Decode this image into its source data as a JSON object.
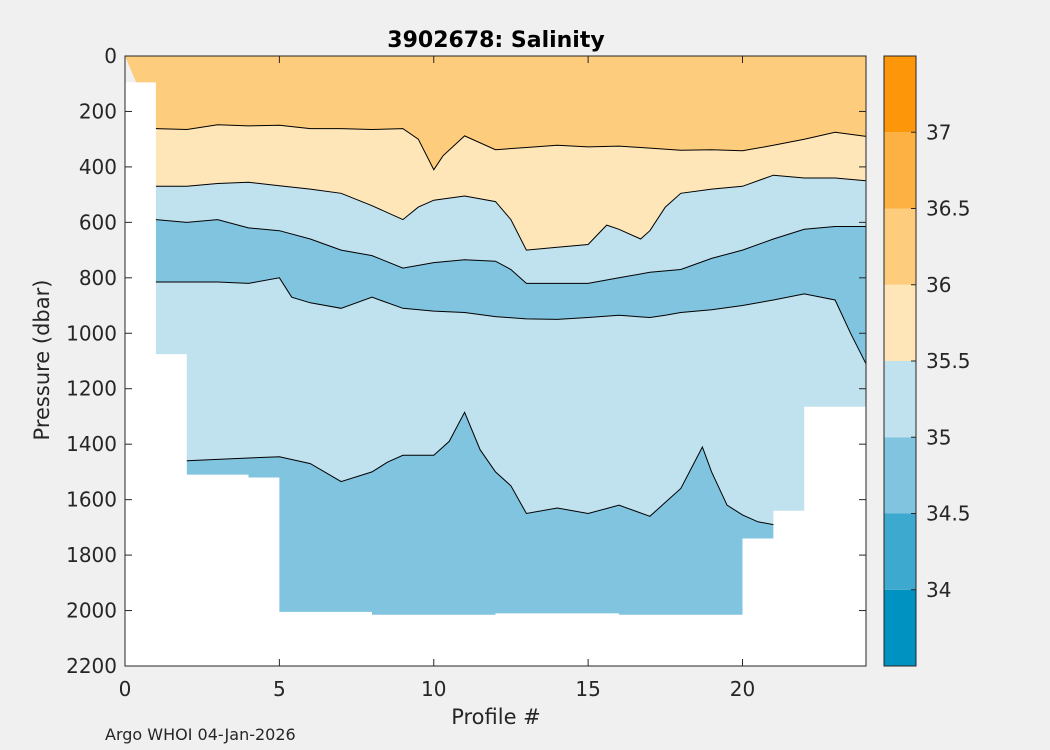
{
  "chart_data": {
    "type": "contour",
    "title": "3902678:  Salinity",
    "xlabel": "Profile #",
    "ylabel": "Pressure (dbar)",
    "xlim": [
      0,
      24
    ],
    "ylim": [
      2200,
      0
    ],
    "xticks": [
      0,
      5,
      10,
      15,
      20
    ],
    "yticks": [
      0,
      200,
      400,
      600,
      800,
      1000,
      1200,
      1400,
      1600,
      1800,
      2000,
      2200
    ],
    "colorbar": {
      "range": [
        33.5,
        37.5
      ],
      "ticks": [
        34,
        34.5,
        35,
        35.5,
        36,
        36.5,
        37
      ],
      "levels": [
        {
          "from": 33.5,
          "to": 34.0,
          "color": "#0092c0"
        },
        {
          "from": 34.0,
          "to": 34.5,
          "color": "#3ea9cf"
        },
        {
          "from": 34.5,
          "to": 35.0,
          "color": "#80c4df"
        },
        {
          "from": 35.0,
          "to": 35.5,
          "color": "#c0e1ee"
        },
        {
          "from": 35.5,
          "to": 36.0,
          "color": "#fee6b9"
        },
        {
          "from": 36.0,
          "to": 36.5,
          "color": "#fdcc7c"
        },
        {
          "from": 36.5,
          "to": 37.0,
          "color": "#fdb143"
        },
        {
          "from": 37.0,
          "to": 37.5,
          "color": "#fd9608"
        }
      ]
    },
    "profile_max_depth": [
      {
        "profile": 0,
        "max_pressure": 95
      },
      {
        "profile": 1,
        "max_pressure": 1075
      },
      {
        "profile": 2,
        "max_pressure": 1510
      },
      {
        "profile": 4,
        "max_pressure": 1520
      },
      {
        "profile": 5,
        "max_pressure": 2005
      },
      {
        "profile": 8,
        "max_pressure": 2015
      },
      {
        "profile": 12,
        "max_pressure": 2010
      },
      {
        "profile": 16,
        "max_pressure": 2015
      },
      {
        "profile": 20,
        "max_pressure": 1740
      },
      {
        "profile": 21,
        "max_pressure": 1640
      },
      {
        "profile": 22,
        "max_pressure": 1265
      },
      {
        "profile": 24,
        "max_pressure": 1265
      }
    ],
    "contours": [
      {
        "level": 36.0,
        "points": [
          [
            1,
            262
          ],
          [
            2,
            265
          ],
          [
            3,
            248
          ],
          [
            4,
            252
          ],
          [
            5,
            250
          ],
          [
            6,
            262
          ],
          [
            7,
            262
          ],
          [
            8,
            265
          ],
          [
            9,
            262
          ],
          [
            9.5,
            300
          ],
          [
            10,
            410
          ],
          [
            10.3,
            360
          ],
          [
            11,
            288
          ],
          [
            12,
            338
          ],
          [
            13,
            330
          ],
          [
            14,
            322
          ],
          [
            15,
            328
          ],
          [
            16,
            325
          ],
          [
            17,
            332
          ],
          [
            18,
            340
          ],
          [
            19,
            338
          ],
          [
            20,
            342
          ],
          [
            21,
            322
          ],
          [
            22,
            300
          ],
          [
            23,
            275
          ],
          [
            24,
            290
          ]
        ]
      },
      {
        "level": 35.5,
        "points": [
          [
            1,
            470
          ],
          [
            2,
            470
          ],
          [
            3,
            460
          ],
          [
            4,
            455
          ],
          [
            5,
            468
          ],
          [
            6,
            480
          ],
          [
            7,
            495
          ],
          [
            8,
            540
          ],
          [
            9,
            590
          ],
          [
            9.5,
            545
          ],
          [
            10,
            520
          ],
          [
            11,
            505
          ],
          [
            12,
            525
          ],
          [
            12.5,
            590
          ],
          [
            13,
            700
          ],
          [
            14,
            690
          ],
          [
            15,
            680
          ],
          [
            15.6,
            610
          ],
          [
            16,
            625
          ],
          [
            16.7,
            660
          ],
          [
            17,
            630
          ],
          [
            17.5,
            545
          ],
          [
            18,
            495
          ],
          [
            19,
            480
          ],
          [
            20,
            470
          ],
          [
            21,
            430
          ],
          [
            22,
            440
          ],
          [
            23,
            440
          ],
          [
            24,
            450
          ]
        ]
      },
      {
        "level": 35.0,
        "points": [
          [
            1,
            590
          ],
          [
            2,
            600
          ],
          [
            3,
            590
          ],
          [
            4,
            620
          ],
          [
            5,
            630
          ],
          [
            6,
            660
          ],
          [
            7,
            700
          ],
          [
            8,
            720
          ],
          [
            9,
            765
          ],
          [
            10,
            745
          ],
          [
            11,
            735
          ],
          [
            12,
            740
          ],
          [
            12.5,
            770
          ],
          [
            13,
            820
          ],
          [
            14,
            820
          ],
          [
            15,
            820
          ],
          [
            16,
            800
          ],
          [
            17,
            780
          ],
          [
            18,
            770
          ],
          [
            19,
            730
          ],
          [
            20,
            700
          ],
          [
            21,
            660
          ],
          [
            22,
            625
          ],
          [
            23,
            615
          ],
          [
            24,
            615
          ]
        ]
      },
      {
        "level": 34.5,
        "points": [
          [
            1,
            815
          ],
          [
            2,
            815
          ],
          [
            3,
            815
          ],
          [
            4,
            820
          ],
          [
            5,
            800
          ],
          [
            5.4,
            870
          ],
          [
            6,
            890
          ],
          [
            7,
            910
          ],
          [
            8,
            870
          ],
          [
            9,
            910
          ],
          [
            10,
            920
          ],
          [
            11,
            925
          ],
          [
            12,
            940
          ],
          [
            13,
            948
          ],
          [
            14,
            950
          ],
          [
            15,
            943
          ],
          [
            16,
            935
          ],
          [
            17,
            943
          ],
          [
            17.5,
            935
          ],
          [
            18,
            925
          ],
          [
            19,
            915
          ],
          [
            20,
            900
          ],
          [
            21,
            880
          ],
          [
            22,
            858
          ],
          [
            23,
            880
          ],
          [
            23.5,
            1000
          ],
          [
            24,
            1110
          ]
        ]
      },
      {
        "level": 34.5,
        "points": [
          [
            2,
            1460
          ],
          [
            3,
            1455
          ],
          [
            4,
            1450
          ],
          [
            5,
            1445
          ],
          [
            6,
            1470
          ],
          [
            7,
            1535
          ],
          [
            8,
            1500
          ],
          [
            8.5,
            1465
          ],
          [
            9,
            1440
          ],
          [
            10,
            1440
          ],
          [
            10.5,
            1390
          ],
          [
            11,
            1285
          ],
          [
            11.5,
            1420
          ],
          [
            12,
            1500
          ],
          [
            12.5,
            1550
          ],
          [
            13,
            1650
          ],
          [
            14,
            1630
          ],
          [
            15,
            1650
          ],
          [
            16,
            1620
          ],
          [
            17,
            1660
          ],
          [
            17.5,
            1610
          ],
          [
            18,
            1560
          ],
          [
            18.7,
            1410
          ],
          [
            19,
            1500
          ],
          [
            19.5,
            1620
          ],
          [
            20,
            1655
          ],
          [
            20.5,
            1680
          ],
          [
            21,
            1690
          ]
        ]
      }
    ]
  },
  "footer": "Argo WHOI 04-Jan-2026"
}
